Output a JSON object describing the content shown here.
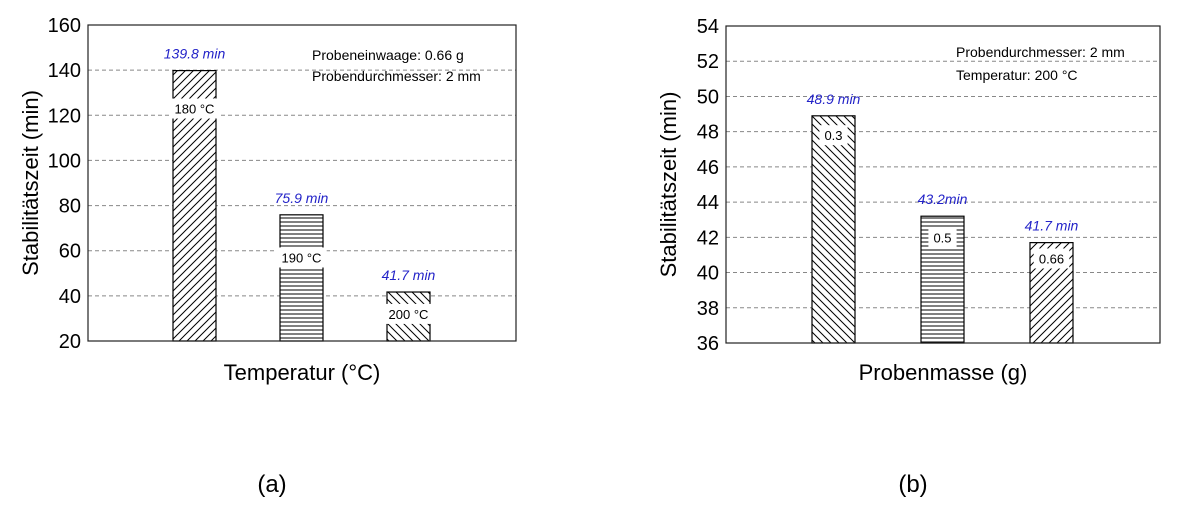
{
  "chart_data": [
    {
      "type": "bar",
      "panel_label": "(a)",
      "xlabel": "Temperatur (°C)",
      "ylabel": "Stabilitätszeit (min)",
      "ylim": [
        20,
        160
      ],
      "yticks": [
        20,
        40,
        60,
        80,
        100,
        120,
        140,
        160
      ],
      "grid": true,
      "categories": [
        "180 °C",
        "190 °C",
        "200 °C"
      ],
      "values": [
        139.8,
        75.9,
        41.7
      ],
      "value_labels": [
        "139.8 min",
        "75.9 min",
        "41.7 min"
      ],
      "patterns": [
        "diag-up",
        "horizontal",
        "diag-down"
      ],
      "category_label_values": [
        123,
        57,
        32
      ],
      "annotations": [
        "Probeneinwaage: 0.66 g",
        "Probendurchmesser: 2 mm"
      ]
    },
    {
      "type": "bar",
      "panel_label": "(b)",
      "xlabel": "Probenmasse (g)",
      "ylabel": "Stabilitätszeit (min)",
      "ylim": [
        36,
        54
      ],
      "yticks": [
        36,
        38,
        40,
        42,
        44,
        46,
        48,
        50,
        52,
        54
      ],
      "grid": true,
      "categories": [
        "0.3",
        "0.5",
        "0.66"
      ],
      "values": [
        48.9,
        43.2,
        41.7
      ],
      "value_labels": [
        "48.9 min",
        "43.2min",
        "41.7 min"
      ],
      "patterns": [
        "diag-down",
        "horizontal",
        "diag-up"
      ],
      "category_label_values": [
        47.8,
        42.0,
        40.8
      ],
      "annotations": [
        "Probendurchmesser: 2 mm",
        "Temperatur: 200 °C"
      ]
    }
  ],
  "colors": {
    "value_label": "#2323c8",
    "grid": "#888888",
    "bar_fill": "#ffffff",
    "bar_stroke": "#000000"
  }
}
